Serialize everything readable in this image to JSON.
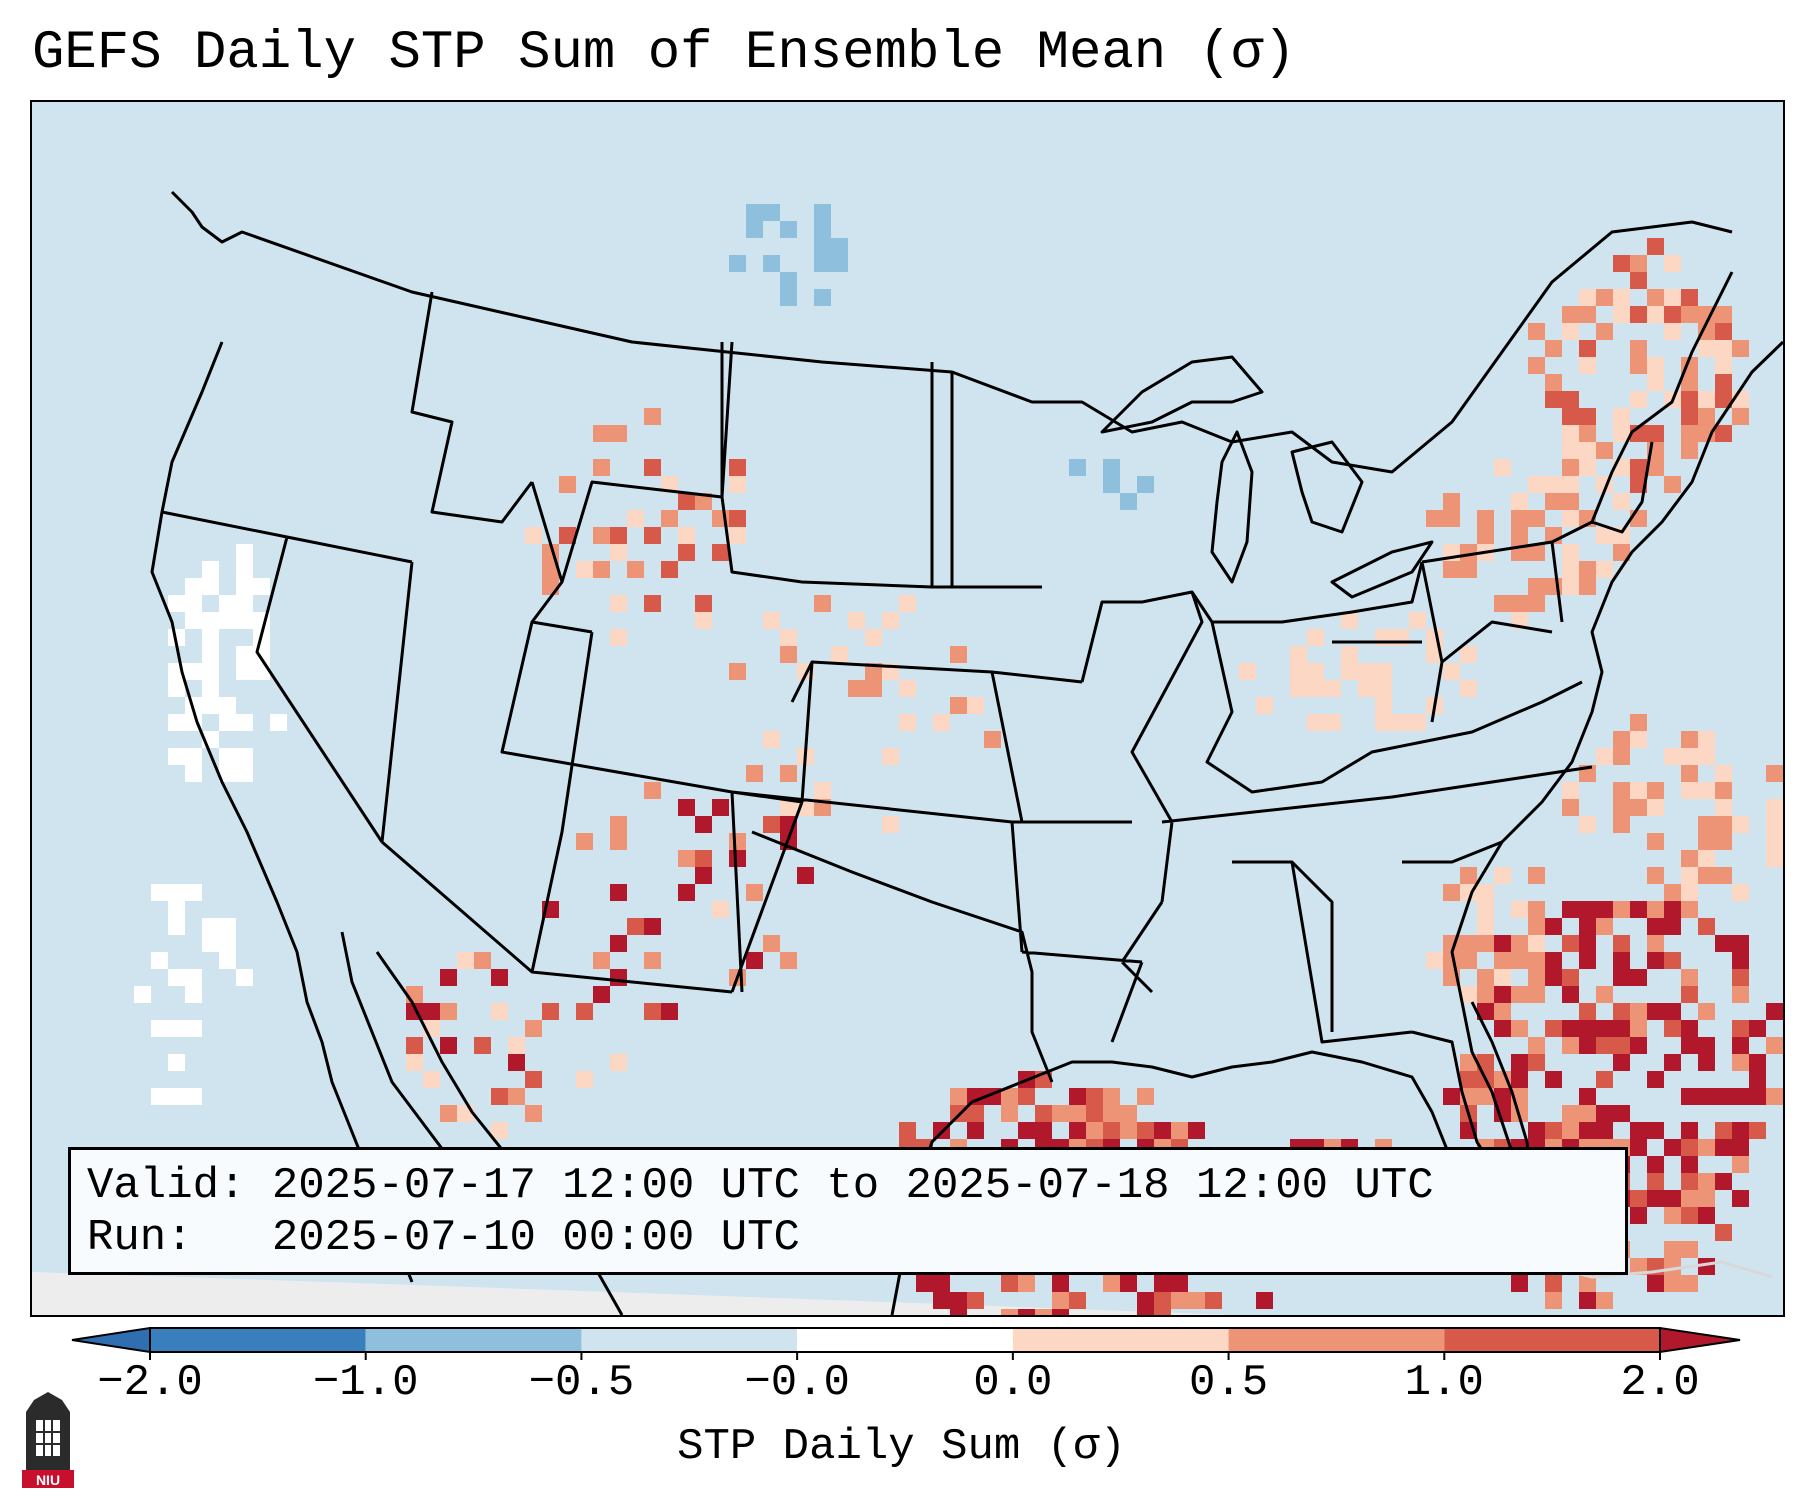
{
  "title": "GEFS Daily STP Sum of Ensemble Mean (σ)",
  "info": {
    "valid_label": "Valid:",
    "valid_value": "2025-07-17 12:00 UTC to 2025-07-18 12:00 UTC",
    "run_label": "Run:",
    "run_value": "2025-07-10 00:00 UTC"
  },
  "colorbar": {
    "label": "STP Daily Sum (σ)",
    "tick_labels": [
      "−2.0",
      "−1.0",
      "−0.5",
      "−0.0",
      "0.0",
      "0.5",
      "1.0",
      "2.0"
    ],
    "bin_colors": [
      "#3a7fbd",
      "#8ec0de",
      "#d0e4f0",
      "#ffffff",
      "#fbd7c4",
      "#ec9475",
      "#d75949"
    ],
    "under_color": "#2f6eb1",
    "over_color": "#b2182b"
  },
  "map": {
    "ocean_color": "#d0e4f0",
    "border_color": "#000000"
  },
  "logo": {
    "text": "NIU",
    "color": "#c8102e"
  }
}
